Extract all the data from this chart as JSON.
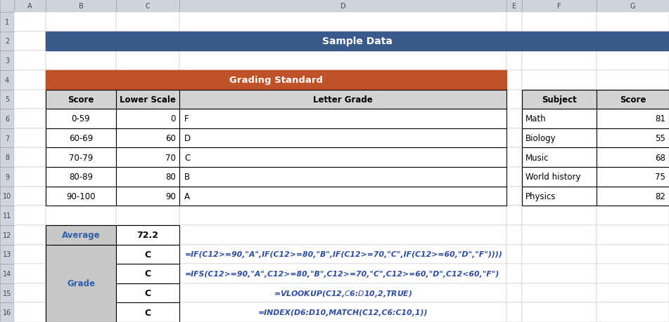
{
  "title": "Sample Data",
  "title_bg": "#3A5A8C",
  "title_color": "#FFFFFF",
  "grading_header": "Grading Standard",
  "grading_header_bg": "#C0522A",
  "grading_header_color": "#FFFFFF",
  "col_header_bg": "#D3D3D3",
  "col_header_color": "#000000",
  "grading_cols": [
    "Score",
    "Lower Scale",
    "Letter Grade"
  ],
  "grading_rows": [
    [
      "0-59",
      "0",
      "F"
    ],
    [
      "60-69",
      "60",
      "D"
    ],
    [
      "70-79",
      "70",
      "C"
    ],
    [
      "80-89",
      "80",
      "B"
    ],
    [
      "90-100",
      "90",
      "A"
    ]
  ],
  "subject_cols": [
    "Subject",
    "Score"
  ],
  "subject_rows": [
    [
      "Math",
      "81"
    ],
    [
      "Biology",
      "55"
    ],
    [
      "Music",
      "68"
    ],
    [
      "World history",
      "75"
    ],
    [
      "Physics",
      "82"
    ]
  ],
  "avg_label": "Average",
  "avg_value": "72.2",
  "grade_label": "Grade",
  "grade_values": [
    "C",
    "C",
    "C",
    "C"
  ],
  "formulas": [
    "=IF(C12>=90,\"A\",IF(C12>=80,\"B\",IF(C12>=70,\"C\",IF(C12>=60,\"D\",\"F\"))))",
    "=IFS(C12>=90,\"A\",C12>=80,\"B\",C12>=70,\"C\",C12>=60,\"D\",C12<60,\"F\")",
    "=VLOOKUP(C12,$C$6:$D$10,2,TRUE)",
    "=INDEX(D6:D10,MATCH(C12,C6:C10,1))"
  ],
  "formula_color": "#2E4C9E",
  "bg_color": "#F2F2F2",
  "header_row_bg": "#D0D4DC",
  "header_row_border": "#A0A0A0",
  "cell_bg": "#FFFFFF",
  "grade_cell_bg": "#C8C8C8",
  "avg_header_color": "#2E5FAD",
  "grade_header_color": "#2E5FAD"
}
